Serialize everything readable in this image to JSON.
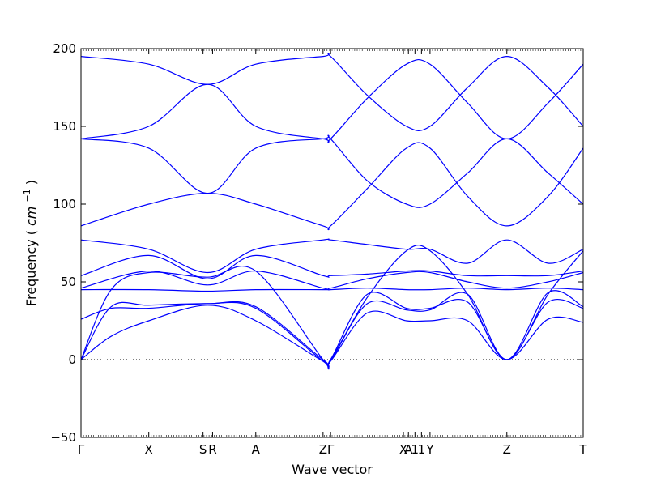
{
  "chart_data": {
    "type": "line",
    "xlabel": "Wave vector",
    "ylabel": "Frequency",
    "ylabel_unit": "cm",
    "ylabel_exponent": "−1",
    "ylim": [
      -50,
      200
    ],
    "yticks": [
      -50,
      0,
      50,
      100,
      150,
      200
    ],
    "ytick_labels": [
      "−50",
      "0",
      "50",
      "100",
      "150",
      "200"
    ],
    "xlim": [
      0,
      1
    ],
    "xticks": [
      {
        "label": "Γ",
        "x": 0.0
      },
      {
        "label": "X",
        "x": 0.135
      },
      {
        "label": "S",
        "x": 0.243
      },
      {
        "label": "R",
        "x": 0.262
      },
      {
        "label": "A",
        "x": 0.348
      },
      {
        "label": "Z",
        "x": 0.482
      },
      {
        "label": "Γ",
        "x": 0.497
      },
      {
        "label": "X",
        "x": 0.642
      },
      {
        "label": "A",
        "x": 0.652
      },
      {
        "label": "1",
        "x": 0.665
      },
      {
        "label": "1",
        "x": 0.678
      },
      {
        "label": "Y",
        "x": 0.695
      },
      {
        "label": "Z",
        "x": 0.848
      },
      {
        "label": "T",
        "x": 1.0
      }
    ],
    "zero_line": true,
    "line_color": "#0000ff",
    "series": [
      {
        "x": [
          0,
          0.135,
          0.252,
          0.348,
          0.482,
          0.497,
          0.57,
          0.648,
          0.695,
          0.77,
          0.848,
          0.93,
          1.0
        ],
        "y": [
          195,
          190,
          177,
          190,
          195,
          195,
          170,
          150,
          150,
          175,
          195,
          175,
          150
        ]
      },
      {
        "x": [
          0,
          0.135,
          0.252,
          0.348,
          0.482,
          0.497,
          0.57,
          0.648,
          0.695,
          0.77,
          0.848,
          0.93,
          1.0
        ],
        "y": [
          142,
          150,
          177,
          150,
          142,
          142,
          168,
          190,
          190,
          165,
          142,
          165,
          190
        ]
      },
      {
        "x": [
          0,
          0.135,
          0.252,
          0.348,
          0.482,
          0.497,
          0.57,
          0.648,
          0.695,
          0.77,
          0.848,
          0.93,
          1.0
        ],
        "y": [
          142,
          136,
          107,
          136,
          142,
          142,
          115,
          100,
          100,
          120,
          142,
          120,
          100
        ]
      },
      {
        "x": [
          0,
          0.135,
          0.252,
          0.348,
          0.482,
          0.497,
          0.57,
          0.648,
          0.695,
          0.77,
          0.848,
          0.93,
          1.0
        ],
        "y": [
          86,
          100,
          107,
          100,
          86,
          86,
          110,
          136,
          136,
          105,
          86,
          105,
          136
        ]
      },
      {
        "x": [
          0,
          0.135,
          0.252,
          0.348,
          0.482,
          0.497,
          0.57,
          0.648,
          0.695,
          0.77,
          0.848,
          0.93,
          1.0
        ],
        "y": [
          77,
          71,
          56,
          71,
          77,
          77,
          74,
          71,
          71,
          62,
          77,
          62,
          71
        ]
      },
      {
        "x": [
          0,
          0.135,
          0.252,
          0.348,
          0.482,
          0.497,
          0.57,
          0.648,
          0.695,
          0.77,
          0.848,
          0.93,
          1.0
        ],
        "y": [
          54,
          67,
          52,
          67,
          54,
          54,
          55,
          57,
          57,
          54,
          54,
          54,
          57
        ]
      },
      {
        "x": [
          0,
          0.135,
          0.252,
          0.348,
          0.482,
          0.497,
          0.57,
          0.648,
          0.695,
          0.77,
          0.848,
          0.93,
          1.0
        ],
        "y": [
          46,
          57,
          48,
          57,
          46,
          46,
          52,
          56,
          56,
          50,
          46,
          50,
          56
        ]
      },
      {
        "x": [
          0,
          0.135,
          0.252,
          0.348,
          0.482,
          0.497,
          0.57,
          0.648,
          0.695,
          0.77,
          0.848,
          0.93,
          1.0
        ],
        "y": [
          45,
          45,
          44,
          45,
          45,
          45,
          46,
          45,
          45,
          46,
          45,
          46,
          45
        ]
      },
      {
        "x": [
          0,
          0.06,
          0.135,
          0.252,
          0.348,
          0.482,
          0.497,
          0.57,
          0.648,
          0.695,
          0.77,
          0.848,
          0.93,
          1.0
        ],
        "y": [
          0,
          45,
          56,
          53,
          57,
          0,
          0,
          40,
          70,
          70,
          42,
          0,
          42,
          70
        ]
      },
      {
        "x": [
          0,
          0.06,
          0.135,
          0.252,
          0.348,
          0.482,
          0.497,
          0.57,
          0.648,
          0.695,
          0.77,
          0.848,
          0.93,
          1.0
        ],
        "y": [
          0,
          34,
          35,
          36,
          34,
          0,
          0,
          42,
          33,
          33,
          37,
          0,
          37,
          33
        ]
      },
      {
        "x": [
          0,
          0.06,
          0.135,
          0.252,
          0.348,
          0.482,
          0.497,
          0.57,
          0.648,
          0.695,
          0.77,
          0.848,
          0.93,
          1.0
        ],
        "y": [
          26,
          33,
          33,
          36,
          33,
          -1,
          -1,
          36,
          32,
          32,
          42,
          0,
          43,
          34
        ]
      },
      {
        "x": [
          0,
          0.06,
          0.135,
          0.252,
          0.348,
          0.482,
          0.497,
          0.57,
          0.648,
          0.695,
          0.77,
          0.848,
          0.93,
          1.0
        ],
        "y": [
          0,
          15,
          25,
          35,
          25,
          -1,
          -1,
          30,
          25,
          25,
          25,
          0,
          26,
          24
        ]
      }
    ]
  }
}
